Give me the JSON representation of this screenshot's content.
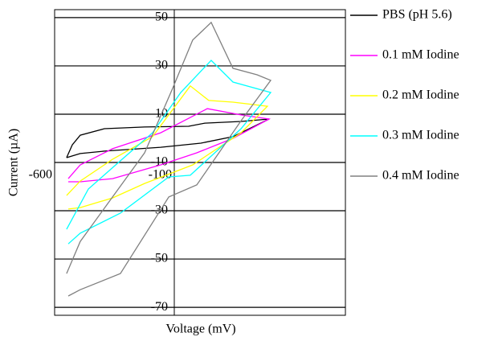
{
  "chart_data": {
    "type": "line",
    "xlabel": "Voltage (mV)",
    "ylabel": "Current (µA)",
    "xlim": [
      -600,
      615
    ],
    "xticks": [
      -600,
      -100
    ],
    "ylim": [
      -73.3,
      53.3
    ],
    "yticks": [
      50,
      30,
      10,
      -10,
      -30,
      -50,
      -70
    ],
    "grid": true,
    "legend": "right",
    "series": [
      {
        "name": "PBS (pH 5.6)",
        "color": "#000000",
        "x": [
          -550,
          -526,
          -493,
          -392,
          -224,
          -40,
          28,
          179,
          296,
          145,
          11,
          -157,
          -392,
          -493,
          -550
        ],
        "values": [
          -8,
          -2.7,
          1.3,
          4,
          4.7,
          5,
          6.3,
          7,
          8,
          0.7,
          -2,
          -3.7,
          -5.3,
          -6.3,
          -8
        ]
      },
      {
        "name": "0.1 mM Iodine",
        "color": "#ff00ff",
        "x": [
          -543,
          -493,
          -358,
          -157,
          38,
          179,
          296,
          145,
          -6,
          -157,
          -358,
          -493,
          -543
        ],
        "values": [
          -16.7,
          -11,
          -4.3,
          2.3,
          12.3,
          9.7,
          8,
          0,
          -6,
          -11,
          -16.7,
          -18,
          -18
        ]
      },
      {
        "name": "0.2 mM Iodine",
        "color": "#ffff00",
        "x": [
          -550,
          -493,
          -358,
          -191,
          -33,
          44,
          145,
          289,
          179,
          -23,
          -224,
          -358,
          -493,
          -543
        ],
        "values": [
          -23.7,
          -17.7,
          -8.7,
          0.7,
          21.7,
          15.7,
          15,
          13.3,
          2.3,
          -11,
          -18.7,
          -24.7,
          -28.7,
          -29.3
        ]
      },
      {
        "name": "0.3 mM Iodine",
        "color": "#00ffff",
        "x": [
          -550,
          -459,
          -325,
          -191,
          -73,
          54,
          145,
          303,
          179,
          -33,
          -123,
          -325,
          -493,
          -543
        ],
        "values": [
          -37.7,
          -21,
          -9.3,
          2.3,
          19,
          32.3,
          23.3,
          19,
          4,
          -15.3,
          -16,
          -31,
          -39.3,
          -43.7
        ]
      },
      {
        "name": "0.4 mM Iodine",
        "color": "#808080",
        "x": [
          -550,
          -493,
          -358,
          -224,
          -107,
          -23,
          54,
          145,
          246,
          303,
          179,
          -6,
          -123,
          -325,
          -493,
          -543
        ],
        "values": [
          -56,
          -42.7,
          -24.3,
          -6,
          20.7,
          40.7,
          48,
          29,
          26.3,
          24,
          7.3,
          -19.3,
          -24.3,
          -56,
          -62.7,
          -65.3
        ]
      }
    ]
  }
}
